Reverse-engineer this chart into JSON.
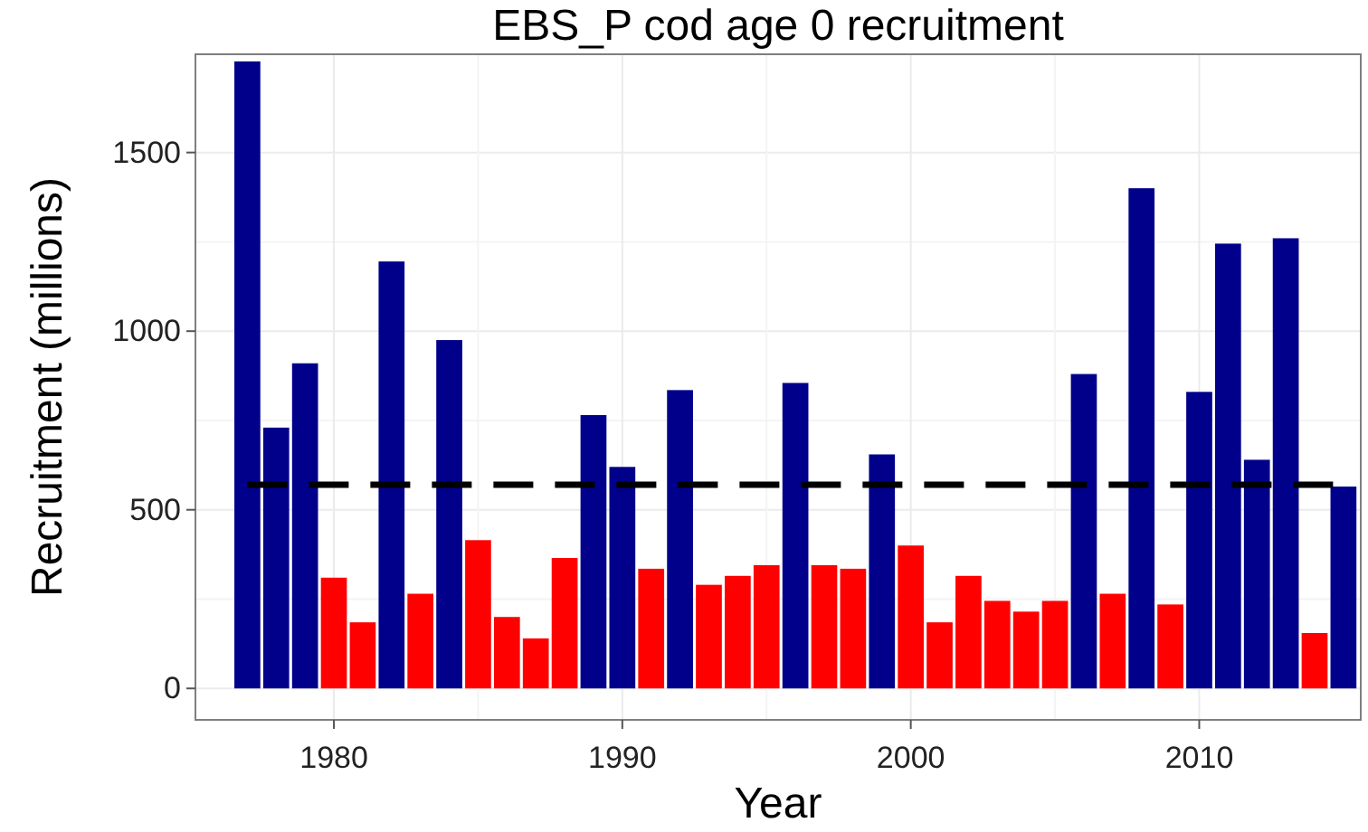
{
  "chart_data": {
    "type": "bar",
    "title": "EBS_P cod age 0 recruitment",
    "xlabel": "Year",
    "ylabel": "Recruitment (millions)",
    "x": [
      1977,
      1978,
      1979,
      1980,
      1981,
      1982,
      1983,
      1984,
      1985,
      1986,
      1987,
      1988,
      1989,
      1990,
      1991,
      1992,
      1993,
      1994,
      1995,
      1996,
      1997,
      1998,
      1999,
      2000,
      2001,
      2002,
      2003,
      2004,
      2005,
      2006,
      2007,
      2008,
      2009,
      2010,
      2011,
      2012,
      2013,
      2014,
      2015
    ],
    "values": [
      1755,
      730,
      910,
      310,
      185,
      1195,
      265,
      975,
      415,
      200,
      140,
      365,
      765,
      620,
      335,
      835,
      290,
      315,
      345,
      855,
      345,
      335,
      655,
      400,
      185,
      315,
      245,
      215,
      245,
      880,
      265,
      1400,
      235,
      830,
      1245,
      640,
      1260,
      155,
      565
    ],
    "colors": [
      "#00008b",
      "#00008b",
      "#00008b",
      "#ff0000",
      "#ff0000",
      "#00008b",
      "#ff0000",
      "#00008b",
      "#ff0000",
      "#ff0000",
      "#ff0000",
      "#ff0000",
      "#00008b",
      "#00008b",
      "#ff0000",
      "#00008b",
      "#ff0000",
      "#ff0000",
      "#ff0000",
      "#00008b",
      "#ff0000",
      "#ff0000",
      "#00008b",
      "#ff0000",
      "#ff0000",
      "#ff0000",
      "#ff0000",
      "#ff0000",
      "#ff0000",
      "#00008b",
      "#ff0000",
      "#00008b",
      "#ff0000",
      "#00008b",
      "#00008b",
      "#00008b",
      "#00008b",
      "#ff0000",
      "#00008b"
    ],
    "xlim": [
      1975.2,
      2015.6
    ],
    "xticks": [
      1980,
      1990,
      2000,
      2010
    ],
    "ylim": [
      -88,
      1775
    ],
    "yticks": [
      0,
      500,
      1000,
      1500
    ],
    "ref_lines": [
      {
        "axis": "y",
        "value": 570,
        "color": "#000000",
        "line_style": "dashed"
      }
    ],
    "grid": true
  }
}
